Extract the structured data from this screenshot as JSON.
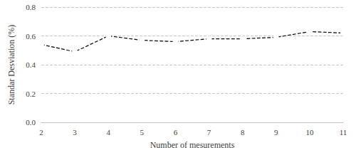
{
  "chart_data": {
    "type": "line",
    "x_label": "Number of mesurements",
    "y_label": "Standar Desviation (%)",
    "x": [
      2,
      3,
      4,
      5,
      6,
      7,
      8,
      9,
      10,
      11
    ],
    "values": [
      0.54,
      0.49,
      0.6,
      0.57,
      0.56,
      0.58,
      0.58,
      0.59,
      0.63,
      0.62
    ],
    "color": "#000000",
    "marker": "circle",
    "line_style": "dashed",
    "xlim": [
      2,
      11
    ],
    "xticks": [
      2,
      3,
      4,
      5,
      6,
      7,
      8,
      9,
      10,
      11
    ],
    "ylim": [
      0,
      0.8
    ],
    "yticks": [
      {
        "value": 0,
        "label": "0.0"
      },
      {
        "value": 0.2,
        "label": "0.2"
      },
      {
        "value": 0.4,
        "label": "0.4"
      },
      {
        "value": 0.6,
        "label": "0.6"
      },
      {
        "value": 0.8,
        "label": "0.8"
      }
    ],
    "grid": true
  }
}
